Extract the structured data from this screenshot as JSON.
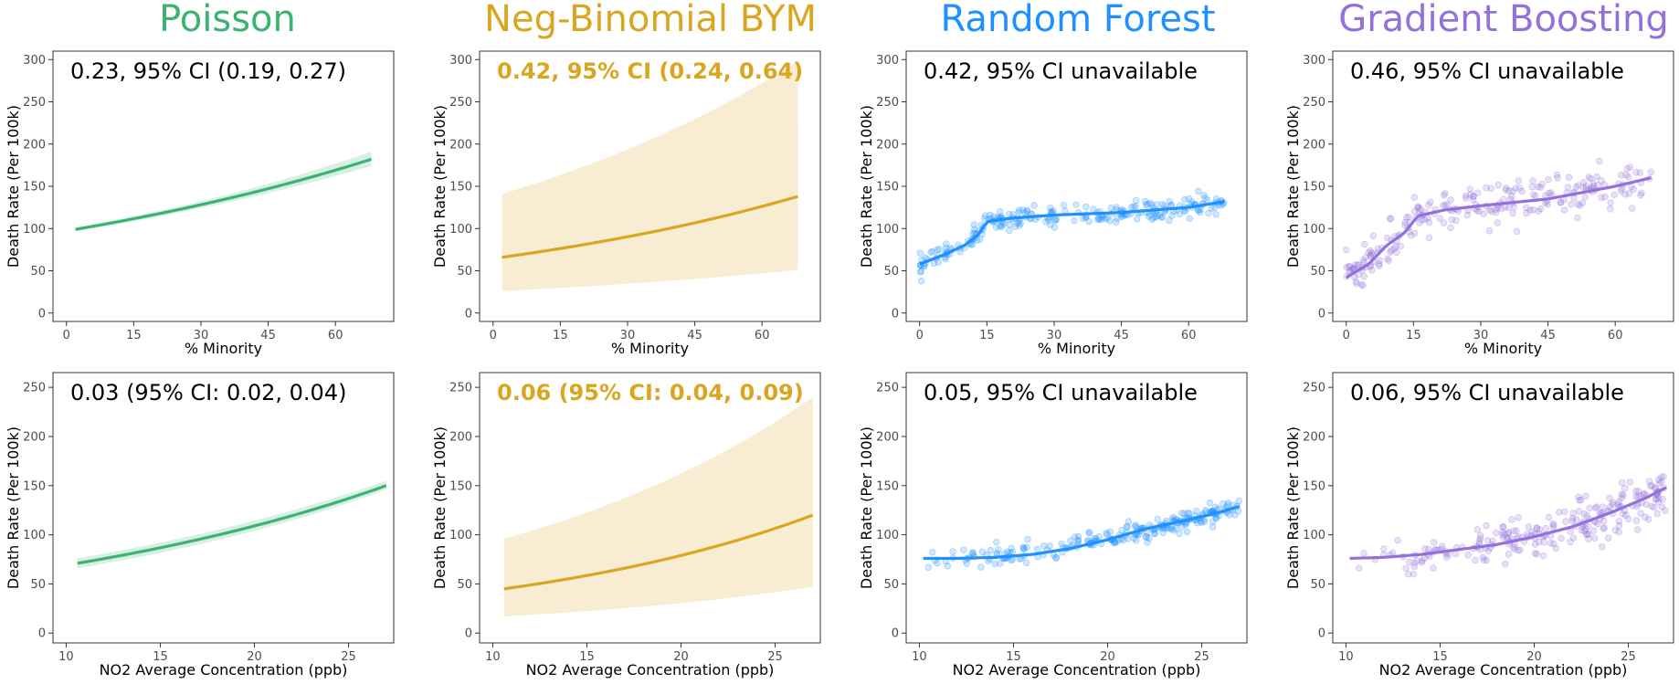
{
  "columns": [
    {
      "title": "Poisson",
      "color": "#3cb371"
    },
    {
      "title": "Neg-Binomial BYM",
      "color": "#daa520"
    },
    {
      "title": "Random Forest",
      "color": "#1e90ff"
    },
    {
      "title": "Gradient Boosting",
      "color": "#9370db"
    }
  ],
  "chart_data": [
    {
      "type": "line",
      "model": "Poisson",
      "xlabel": "% Minority",
      "ylabel": "Death Rate (Per 100k)",
      "annotation": "0.23, 95% CI (0.19, 0.27)",
      "annotation_bold": false,
      "xlim": [
        -3,
        73
      ],
      "ylim": [
        -10,
        310
      ],
      "xticks": [
        0,
        15,
        30,
        45,
        60
      ],
      "yticks": [
        0,
        50,
        100,
        150,
        200,
        250,
        300
      ],
      "fit": {
        "x0": 2,
        "x1": 68,
        "y0": 99,
        "y1": 182,
        "curve": "exp"
      },
      "ci": {
        "lower": [
          97,
          174
        ],
        "upper": [
          101,
          191
        ]
      }
    },
    {
      "type": "line",
      "model": "Neg-Binomial BYM",
      "xlabel": "% Minority",
      "ylabel": "Death Rate (Per 100k)",
      "annotation": "0.42, 95% CI (0.24, 0.64)",
      "annotation_bold": true,
      "xlim": [
        -3,
        73
      ],
      "ylim": [
        -10,
        310
      ],
      "xticks": [
        0,
        15,
        30,
        45,
        60
      ],
      "yticks": [
        0,
        50,
        100,
        150,
        200,
        250,
        300
      ],
      "fit": {
        "x0": 2,
        "x1": 68,
        "y0": 66,
        "y1": 138,
        "curve": "exp"
      },
      "ci": {
        "lower": [
          26,
          51
        ],
        "upper": [
          141,
          298
        ]
      }
    },
    {
      "type": "scatter",
      "model": "Random Forest",
      "xlabel": "% Minority",
      "ylabel": "Death Rate (Per 100k)",
      "annotation": "0.42, 95% CI unavailable",
      "annotation_bold": false,
      "xlim": [
        -3,
        73
      ],
      "ylim": [
        -10,
        310
      ],
      "xticks": [
        0,
        15,
        30,
        45,
        60
      ],
      "yticks": [
        0,
        50,
        100,
        150,
        200,
        250,
        300
      ],
      "fit_points": [
        [
          0,
          58
        ],
        [
          5,
          68
        ],
        [
          10,
          80
        ],
        [
          13,
          92
        ],
        [
          15,
          108
        ],
        [
          20,
          112
        ],
        [
          30,
          116
        ],
        [
          45,
          119
        ],
        [
          60,
          125
        ],
        [
          68,
          132
        ]
      ],
      "scatter_noise": 6
    },
    {
      "type": "scatter",
      "model": "Gradient Boosting",
      "xlabel": "% Minority",
      "ylabel": "Death Rate (Per 100k)",
      "annotation": "0.46, 95% CI unavailable",
      "annotation_bold": false,
      "xlim": [
        -3,
        73
      ],
      "ylim": [
        -10,
        310
      ],
      "xticks": [
        0,
        15,
        30,
        45,
        60
      ],
      "yticks": [
        0,
        50,
        100,
        150,
        200,
        250,
        300
      ],
      "fit_points": [
        [
          0,
          42
        ],
        [
          5,
          58
        ],
        [
          9,
          80
        ],
        [
          13,
          95
        ],
        [
          16,
          115
        ],
        [
          22,
          122
        ],
        [
          30,
          127
        ],
        [
          45,
          135
        ],
        [
          60,
          150
        ],
        [
          68,
          160
        ]
      ],
      "scatter_noise": 12
    },
    {
      "type": "line",
      "model": "Poisson",
      "xlabel": "NO2 Average Concentration (ppb)",
      "ylabel": "Death Rate (Per 100k)",
      "annotation": "0.03 (95% CI: 0.02, 0.04)",
      "annotation_bold": false,
      "xlim": [
        9.3,
        27.4
      ],
      "ylim": [
        -10,
        265
      ],
      "xticks": [
        10,
        15,
        20,
        25
      ],
      "yticks": [
        0,
        50,
        100,
        150,
        200,
        250
      ],
      "fit": {
        "x0": 10.6,
        "x1": 27,
        "y0": 71,
        "y1": 150,
        "curve": "exp"
      },
      "ci": {
        "lower": [
          66,
          146
        ],
        "upper": [
          76,
          155
        ]
      }
    },
    {
      "type": "line",
      "model": "Neg-Binomial BYM",
      "xlabel": "NO2 Average Concentration (ppb)",
      "ylabel": "Death Rate (Per 100k)",
      "annotation": "0.06 (95% CI: 0.04, 0.09)",
      "annotation_bold": true,
      "xlim": [
        9.3,
        27.4
      ],
      "ylim": [
        -10,
        265
      ],
      "xticks": [
        10,
        15,
        20,
        25
      ],
      "yticks": [
        0,
        50,
        100,
        150,
        200,
        250
      ],
      "fit": {
        "x0": 10.6,
        "x1": 27,
        "y0": 45,
        "y1": 120,
        "curve": "exp"
      },
      "ci": {
        "lower": [
          17,
          47
        ],
        "upper": [
          96,
          240
        ]
      }
    },
    {
      "type": "scatter",
      "model": "Random Forest",
      "xlabel": "NO2 Average Concentration (ppb)",
      "ylabel": "Death Rate (Per 100k)",
      "annotation": "0.05, 95% CI unavailable",
      "annotation_bold": false,
      "xlim": [
        9.3,
        27.4
      ],
      "ylim": [
        -10,
        265
      ],
      "xticks": [
        10,
        15,
        20,
        25
      ],
      "yticks": [
        0,
        50,
        100,
        150,
        200,
        250
      ],
      "fit_points": [
        [
          10.2,
          76
        ],
        [
          12,
          76
        ],
        [
          14,
          77
        ],
        [
          16,
          80
        ],
        [
          18,
          86
        ],
        [
          20,
          95
        ],
        [
          22,
          106
        ],
        [
          24,
          114
        ],
        [
          26,
          123
        ],
        [
          27,
          129
        ]
      ],
      "scatter_noise": 5
    },
    {
      "type": "scatter",
      "model": "Gradient Boosting",
      "xlabel": "NO2 Average Concentration (ppb)",
      "ylabel": "Death Rate (Per 100k)",
      "annotation": "0.06, 95% CI unavailable",
      "annotation_bold": false,
      "xlim": [
        9.3,
        27.4
      ],
      "ylim": [
        -10,
        265
      ],
      "xticks": [
        10,
        15,
        20,
        25
      ],
      "yticks": [
        0,
        50,
        100,
        150,
        200,
        250
      ],
      "fit_points": [
        [
          10.2,
          76
        ],
        [
          12,
          77
        ],
        [
          14,
          80
        ],
        [
          16,
          85
        ],
        [
          18,
          90
        ],
        [
          20,
          98
        ],
        [
          22,
          108
        ],
        [
          24,
          122
        ],
        [
          26,
          138
        ],
        [
          27,
          148
        ]
      ],
      "scatter_noise": 11
    }
  ]
}
